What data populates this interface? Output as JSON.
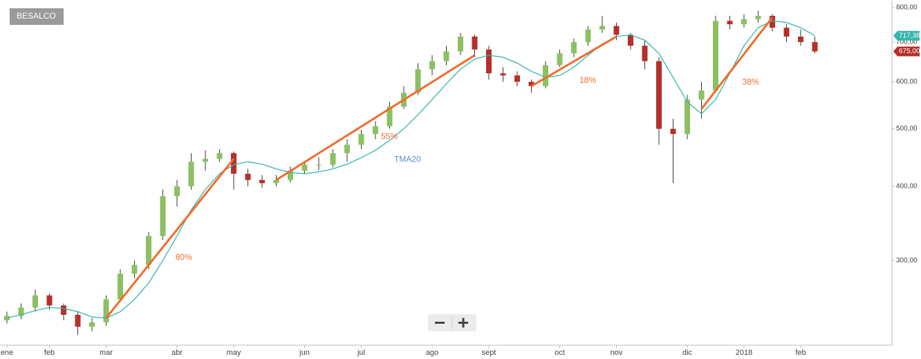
{
  "badge": "BESALCO",
  "chart_data": {
    "type": "candlestick",
    "categories": [
      "ene",
      null,
      null,
      "feb",
      null,
      null,
      null,
      "mar",
      null,
      null,
      null,
      null,
      "abr",
      null,
      null,
      null,
      "may",
      null,
      null,
      null,
      null,
      "jun",
      null,
      null,
      null,
      "jul",
      null,
      null,
      null,
      null,
      "ago",
      null,
      null,
      null,
      "sept",
      null,
      null,
      null,
      null,
      "oct",
      null,
      null,
      null,
      "nov",
      null,
      null,
      null,
      null,
      "dic",
      null,
      null,
      null,
      "2018",
      null,
      null,
      null,
      "feb",
      null
    ],
    "open": [
      238,
      242,
      250,
      262,
      252,
      243,
      232,
      236,
      258,
      285,
      295,
      330,
      385,
      400,
      440,
      445,
      455,
      420,
      410,
      405,
      410,
      425,
      435,
      435,
      455,
      470,
      490,
      505,
      545,
      575,
      630,
      650,
      675,
      715,
      680,
      620,
      615,
      600,
      590,
      640,
      670,
      700,
      735,
      745,
      720,
      690,
      650,
      500,
      490,
      560,
      580,
      760,
      750,
      765,
      775,
      740,
      715,
      700
    ],
    "high": [
      246,
      254,
      268,
      264,
      254,
      246,
      240,
      262,
      290,
      300,
      335,
      395,
      410,
      455,
      460,
      462,
      458,
      428,
      418,
      418,
      432,
      440,
      448,
      462,
      480,
      498,
      515,
      555,
      590,
      645,
      665,
      690,
      725,
      720,
      690,
      635,
      625,
      605,
      650,
      680,
      710,
      745,
      775,
      755,
      725,
      705,
      660,
      520,
      570,
      600,
      775,
      775,
      780,
      790,
      780,
      750,
      735,
      715
    ],
    "low": [
      235,
      239,
      246,
      248,
      238,
      225,
      228,
      233,
      255,
      280,
      290,
      325,
      370,
      395,
      425,
      440,
      395,
      400,
      398,
      400,
      406,
      420,
      426,
      430,
      440,
      462,
      480,
      500,
      540,
      570,
      615,
      640,
      665,
      660,
      605,
      600,
      590,
      575,
      585,
      635,
      660,
      690,
      725,
      705,
      680,
      630,
      470,
      405,
      480,
      520,
      575,
      735,
      740,
      755,
      730,
      700,
      690,
      670
    ],
    "close": [
      242,
      250,
      262,
      252,
      243,
      232,
      236,
      258,
      285,
      295,
      330,
      385,
      400,
      440,
      445,
      455,
      420,
      410,
      405,
      410,
      425,
      435,
      435,
      455,
      470,
      490,
      505,
      545,
      575,
      630,
      650,
      675,
      715,
      680,
      620,
      615,
      600,
      590,
      640,
      670,
      700,
      735,
      745,
      720,
      690,
      650,
      500,
      490,
      560,
      580,
      760,
      750,
      765,
      775,
      740,
      715,
      700,
      675
    ],
    "up_color": "#8cc063",
    "down_color": "#b5302a",
    "last_label": "675,00",
    "series": [
      {
        "name": "TMA20",
        "color": "#35b5ad",
        "last_label": "717,38",
        "values": [
          240,
          243,
          247,
          250,
          249,
          246,
          241,
          240,
          246,
          258,
          275,
          300,
          330,
          365,
          395,
          420,
          435,
          440,
          436,
          428,
          422,
          420,
          423,
          428,
          436,
          447,
          460,
          478,
          500,
          528,
          560,
          595,
          630,
          655,
          665,
          660,
          645,
          625,
          610,
          615,
          635,
          665,
          695,
          715,
          720,
          705,
          670,
          610,
          555,
          530,
          560,
          620,
          690,
          740,
          760,
          755,
          740,
          717.38
        ]
      }
    ],
    "trendlines": [
      {
        "label": "80%",
        "color": "#f26b2a",
        "start": [
          7,
          240
        ],
        "end": [
          16,
          445
        ]
      },
      {
        "label": "55%",
        "color": "#f26b2a",
        "start": [
          19,
          410
        ],
        "end": [
          33,
          665
        ]
      },
      {
        "label": "18%",
        "color": "#f26b2a",
        "start": [
          37,
          590
        ],
        "end": [
          43,
          715
        ]
      },
      {
        "label": "38%",
        "color": "#f26b2a",
        "start": [
          49,
          540
        ],
        "end": [
          54,
          770
        ]
      }
    ],
    "ylim": [
      216,
      824
    ],
    "log_scale": true,
    "yticks": [
      {
        "value": 300,
        "label": "300,00"
      },
      {
        "value": 400,
        "label": "400,00"
      },
      {
        "value": 500,
        "label": "500,00"
      },
      {
        "value": 600,
        "label": "600,00"
      },
      {
        "value": 700,
        "label": "700,00"
      },
      {
        "value": 800,
        "label": "800,00"
      }
    ]
  }
}
